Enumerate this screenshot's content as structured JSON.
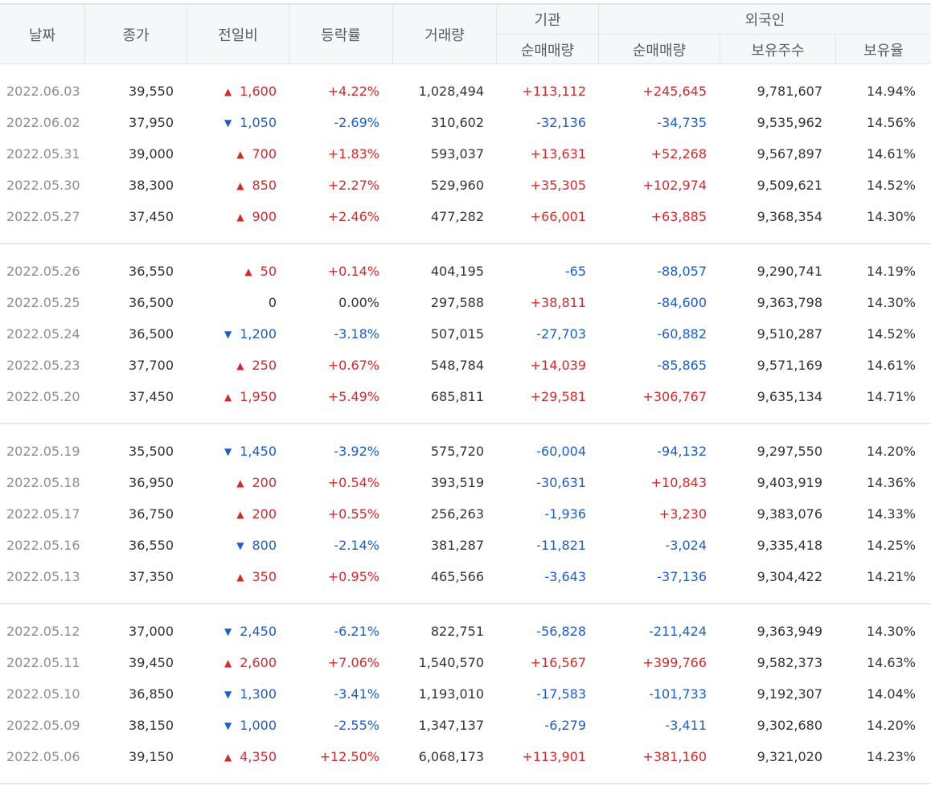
{
  "header": {
    "date": "날짜",
    "close": "종가",
    "change": "전일비",
    "rate": "등락률",
    "volume": "거래량",
    "institution": "기관",
    "inst_net": "순매매량",
    "foreign": "외국인",
    "foreign_net": "순매매량",
    "holdings": "보유주수",
    "ratio": "보유율"
  },
  "colors": {
    "up": "#d42a2a",
    "down": "#1d5dcc"
  },
  "groups": [
    [
      {
        "date": "2022.06.03",
        "close": "39,550",
        "dir": "up",
        "change": "1,600",
        "rate": "+4.22%",
        "volume": "1,028,494",
        "inst": "+113,112",
        "foreign": "+245,645",
        "holdings": "9,781,607",
        "ratio": "14.94%"
      },
      {
        "date": "2022.06.02",
        "close": "37,950",
        "dir": "down",
        "change": "1,050",
        "rate": "-2.69%",
        "volume": "310,602",
        "inst": "-32,136",
        "foreign": "-34,735",
        "holdings": "9,535,962",
        "ratio": "14.56%"
      },
      {
        "date": "2022.05.31",
        "close": "39,000",
        "dir": "up",
        "change": "700",
        "rate": "+1.83%",
        "volume": "593,037",
        "inst": "+13,631",
        "foreign": "+52,268",
        "holdings": "9,567,897",
        "ratio": "14.61%"
      },
      {
        "date": "2022.05.30",
        "close": "38,300",
        "dir": "up",
        "change": "850",
        "rate": "+2.27%",
        "volume": "529,960",
        "inst": "+35,305",
        "foreign": "+102,974",
        "holdings": "9,509,621",
        "ratio": "14.52%"
      },
      {
        "date": "2022.05.27",
        "close": "37,450",
        "dir": "up",
        "change": "900",
        "rate": "+2.46%",
        "volume": "477,282",
        "inst": "+66,001",
        "foreign": "+63,885",
        "holdings": "9,368,354",
        "ratio": "14.30%"
      }
    ],
    [
      {
        "date": "2022.05.26",
        "close": "36,550",
        "dir": "up",
        "change": "50",
        "rate": "+0.14%",
        "volume": "404,195",
        "inst": "-65",
        "foreign": "-88,057",
        "holdings": "9,290,741",
        "ratio": "14.19%"
      },
      {
        "date": "2022.05.25",
        "close": "36,500",
        "dir": "flat",
        "change": "0",
        "rate": "0.00%",
        "volume": "297,588",
        "inst": "+38,811",
        "foreign": "-84,600",
        "holdings": "9,363,798",
        "ratio": "14.30%"
      },
      {
        "date": "2022.05.24",
        "close": "36,500",
        "dir": "down",
        "change": "1,200",
        "rate": "-3.18%",
        "volume": "507,015",
        "inst": "-27,703",
        "foreign": "-60,882",
        "holdings": "9,510,287",
        "ratio": "14.52%"
      },
      {
        "date": "2022.05.23",
        "close": "37,700",
        "dir": "up",
        "change": "250",
        "rate": "+0.67%",
        "volume": "548,784",
        "inst": "+14,039",
        "foreign": "-85,865",
        "holdings": "9,571,169",
        "ratio": "14.61%"
      },
      {
        "date": "2022.05.20",
        "close": "37,450",
        "dir": "up",
        "change": "1,950",
        "rate": "+5.49%",
        "volume": "685,811",
        "inst": "+29,581",
        "foreign": "+306,767",
        "holdings": "9,635,134",
        "ratio": "14.71%"
      }
    ],
    [
      {
        "date": "2022.05.19",
        "close": "35,500",
        "dir": "down",
        "change": "1,450",
        "rate": "-3.92%",
        "volume": "575,720",
        "inst": "-60,004",
        "foreign": "-94,132",
        "holdings": "9,297,550",
        "ratio": "14.20%"
      },
      {
        "date": "2022.05.18",
        "close": "36,950",
        "dir": "up",
        "change": "200",
        "rate": "+0.54%",
        "volume": "393,519",
        "inst": "-30,631",
        "foreign": "+10,843",
        "holdings": "9,403,919",
        "ratio": "14.36%"
      },
      {
        "date": "2022.05.17",
        "close": "36,750",
        "dir": "up",
        "change": "200",
        "rate": "+0.55%",
        "volume": "256,263",
        "inst": "-1,936",
        "foreign": "+3,230",
        "holdings": "9,383,076",
        "ratio": "14.33%"
      },
      {
        "date": "2022.05.16",
        "close": "36,550",
        "dir": "down",
        "change": "800",
        "rate": "-2.14%",
        "volume": "381,287",
        "inst": "-11,821",
        "foreign": "-3,024",
        "holdings": "9,335,418",
        "ratio": "14.25%"
      },
      {
        "date": "2022.05.13",
        "close": "37,350",
        "dir": "up",
        "change": "350",
        "rate": "+0.95%",
        "volume": "465,566",
        "inst": "-3,643",
        "foreign": "-37,136",
        "holdings": "9,304,422",
        "ratio": "14.21%"
      }
    ],
    [
      {
        "date": "2022.05.12",
        "close": "37,000",
        "dir": "down",
        "change": "2,450",
        "rate": "-6.21%",
        "volume": "822,751",
        "inst": "-56,828",
        "foreign": "-211,424",
        "holdings": "9,363,949",
        "ratio": "14.30%"
      },
      {
        "date": "2022.05.11",
        "close": "39,450",
        "dir": "up",
        "change": "2,600",
        "rate": "+7.06%",
        "volume": "1,540,570",
        "inst": "+16,567",
        "foreign": "+399,766",
        "holdings": "9,582,373",
        "ratio": "14.63%"
      },
      {
        "date": "2022.05.10",
        "close": "36,850",
        "dir": "down",
        "change": "1,300",
        "rate": "-3.41%",
        "volume": "1,193,010",
        "inst": "-17,583",
        "foreign": "-101,733",
        "holdings": "9,192,307",
        "ratio": "14.04%"
      },
      {
        "date": "2022.05.09",
        "close": "38,150",
        "dir": "down",
        "change": "1,000",
        "rate": "-2.55%",
        "volume": "1,347,137",
        "inst": "-6,279",
        "foreign": "-3,411",
        "holdings": "9,302,680",
        "ratio": "14.20%"
      },
      {
        "date": "2022.05.06",
        "close": "39,150",
        "dir": "up",
        "change": "4,350",
        "rate": "+12.50%",
        "volume": "6,068,173",
        "inst": "+113,901",
        "foreign": "+381,160",
        "holdings": "9,321,020",
        "ratio": "14.23%"
      }
    ]
  ]
}
